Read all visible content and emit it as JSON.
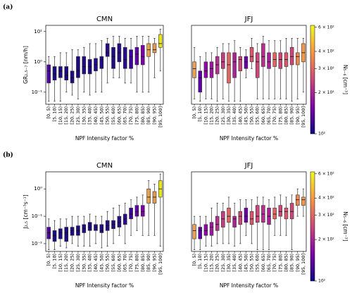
{
  "panel_labels": [
    "(a)",
    "(b)"
  ],
  "chart_data": [
    {
      "type": "box",
      "title": "CMN",
      "xlabel": "NPF Intensity factor %",
      "ylabel": "GR₂.₅₋₇ [nm/h]",
      "log_y": true,
      "ylim": [
        0.04,
        16
      ],
      "yticks": [
        {
          "value": 0.1,
          "label": "10⁻¹"
        },
        {
          "value": 1,
          "label": "10⁰"
        },
        {
          "value": 10,
          "label": "10¹"
        }
      ],
      "categories": [
        "[0, 5)",
        "[5, 10)",
        "[10, 15)",
        "[15, 20)",
        "[20, 25)",
        "[25, 30)",
        "[30, 35)",
        "[35, 40)",
        "[40, 45)",
        "[45, 50)",
        "[50, 55)",
        "[55, 60)",
        "[60, 65)",
        "[65, 70)",
        "[70, 75)",
        "[75, 80)",
        "[80, 85)",
        "[85, 90)",
        "[90, 95)",
        "[95, 100]"
      ],
      "min": [
        0.05,
        0.05,
        0.05,
        0.1,
        0.08,
        0.06,
        0.1,
        0.08,
        0.1,
        0.1,
        0.2,
        0.3,
        0.3,
        0.2,
        0.2,
        0.1,
        0.1,
        0.1,
        0.3,
        0.5
      ],
      "q1": [
        0.2,
        0.25,
        0.3,
        0.25,
        0.2,
        0.3,
        0.4,
        0.4,
        0.5,
        0.6,
        1.5,
        0.6,
        1,
        0.6,
        0.6,
        0.8,
        0.8,
        1.5,
        2,
        3
      ],
      "median": [
        0.5,
        0.4,
        0.5,
        0.35,
        0.3,
        0.5,
        0.7,
        0.7,
        0.8,
        1.2,
        2,
        1.5,
        2,
        1.2,
        1.5,
        1.8,
        1.5,
        2.5,
        2.5,
        4
      ],
      "q3": [
        0.8,
        0.7,
        0.7,
        0.7,
        0.5,
        1.5,
        1.5,
        1.2,
        1.3,
        1.5,
        4,
        3,
        4,
        3,
        2.5,
        3,
        3.5,
        4,
        4,
        8
      ],
      "max": [
        1.5,
        1.5,
        2,
        2,
        2.5,
        2.5,
        3,
        4,
        4,
        5,
        6,
        7,
        7,
        6,
        6,
        7,
        7,
        7,
        6,
        12
      ],
      "colors": [
        "#4a02a0",
        "#1c0a80",
        "#1f0c82",
        "#1a0a7e",
        "#200b84",
        "#1d0a80",
        "#220b85",
        "#1e0a82",
        "#230c86",
        "#200b84",
        "#250c87",
        "#1f0b82",
        "#270c88",
        "#2a0c8a",
        "#3b049a",
        "#5c01a6",
        "#7b02a8",
        "#e8a04a",
        "#e39a50",
        "#e5e419"
      ]
    },
    {
      "type": "box",
      "title": "JFJ",
      "xlabel": "NPF Intensity factor %",
      "log_y": true,
      "ylim": [
        0.04,
        16
      ],
      "categories": [
        "[0, 5)",
        "[5, 10)",
        "[10, 15)",
        "[15, 20)",
        "[20, 25)",
        "[25, 30)",
        "[30, 35)",
        "[35, 40)",
        "[40, 45)",
        "[45, 50)",
        "[50, 55)",
        "[55, 60)",
        "[60, 65)",
        "[65, 70)",
        "[70, 75)",
        "[75, 80)",
        "[80, 85)",
        "[85, 90)",
        "[90, 95)",
        "[95, 100]"
      ],
      "min": [
        0.06,
        0.05,
        0.06,
        0.06,
        0.05,
        0.06,
        0.05,
        0.05,
        0.05,
        0.3,
        0.6,
        0.06,
        0.06,
        0.06,
        0.06,
        0.06,
        0.06,
        0.05,
        0.06,
        0.1
      ],
      "q1": [
        0.3,
        0.1,
        0.3,
        0.3,
        0.4,
        0.6,
        0.2,
        0.3,
        0.5,
        0.6,
        1,
        0.3,
        0.7,
        0.6,
        0.7,
        0.6,
        0.7,
        0.8,
        0.8,
        1
      ],
      "median": [
        0.6,
        0.3,
        0.5,
        0.6,
        0.8,
        1,
        0.8,
        1,
        1.2,
        1,
        1.5,
        1,
        1.5,
        1,
        1.2,
        1.2,
        1.2,
        1.5,
        1.5,
        2
      ],
      "q3": [
        1,
        0.5,
        1,
        1,
        1.5,
        2,
        2,
        2,
        1.5,
        1.5,
        3,
        2,
        4,
        2,
        2,
        2,
        2,
        3,
        2,
        4
      ],
      "max": [
        3,
        1.5,
        2,
        2,
        3,
        4,
        4,
        5,
        3,
        2.5,
        6,
        4,
        7,
        5,
        5,
        5,
        6,
        6,
        6,
        6
      ],
      "colors": [
        "#e8a05a",
        "#5c01a6",
        "#8b0aa5",
        "#9c179e",
        "#b52f8c",
        "#c33d80",
        "#e16462",
        "#a82296",
        "#cc4778",
        "#6a00a8",
        "#d8576b",
        "#cc4778",
        "#b52f8c",
        "#a82296",
        "#e16462",
        "#cc4778",
        "#d8576b",
        "#cc4778",
        "#f2844b",
        "#f89540"
      ],
      "colorbar": {
        "label": "N₅₋₆ [cm⁻³]",
        "lim": [
          100,
          620
        ],
        "log": true,
        "ticks": [
          {
            "value": 100,
            "label": "10²"
          },
          {
            "value": 200,
            "label": "2 × 10²"
          },
          {
            "value": 300,
            "label": "3 × 10²"
          },
          {
            "value": 400,
            "label": "4 × 10²"
          },
          {
            "value": 600,
            "label": "6 × 10²"
          }
        ]
      }
    },
    {
      "type": "box",
      "title": "CMN",
      "xlabel": "NPF Intensity factor %",
      "ylabel": "J₂.₅ [cm⁻³s⁻¹]",
      "log_y": true,
      "ylim": [
        0.0052,
        4.2
      ],
      "yticks": [
        {
          "value": 0.01,
          "label": "10⁻²"
        },
        {
          "value": 0.1,
          "label": "10⁻¹"
        },
        {
          "value": 1,
          "label": "10⁰"
        }
      ],
      "categories": [
        "[0, 5)",
        "[5, 10)",
        "[10, 15)",
        "[15, 20)",
        "[20, 25)",
        "[25, 30)",
        "[30, 35)",
        "[35, 40)",
        "[40, 45)",
        "[45, 50)",
        "[50, 55)",
        "[55, 60)",
        "[60, 65)",
        "[65, 70)",
        "[70, 75)",
        "[75, 80)",
        "[80, 85)",
        "[85, 90)",
        "[90, 95)",
        "[95, 100]"
      ],
      "min": [
        0.006,
        0.006,
        0.008,
        0.007,
        0.01,
        0.008,
        0.008,
        0.008,
        0.01,
        0.007,
        0.008,
        0.01,
        0.02,
        0.01,
        0.02,
        0.03,
        0.02,
        0.02,
        0.02,
        0.008
      ],
      "q1": [
        0.015,
        0.012,
        0.015,
        0.012,
        0.02,
        0.02,
        0.025,
        0.03,
        0.03,
        0.025,
        0.03,
        0.035,
        0.04,
        0.05,
        0.08,
        0.1,
        0.1,
        0.3,
        0.3,
        0.5
      ],
      "median": [
        0.025,
        0.02,
        0.025,
        0.025,
        0.03,
        0.03,
        0.035,
        0.04,
        0.04,
        0.03,
        0.045,
        0.05,
        0.06,
        0.08,
        0.12,
        0.15,
        0.15,
        0.5,
        0.5,
        1
      ],
      "q3": [
        0.04,
        0.03,
        0.035,
        0.04,
        0.04,
        0.045,
        0.05,
        0.06,
        0.05,
        0.05,
        0.07,
        0.07,
        0.1,
        0.12,
        0.2,
        0.25,
        0.25,
        1,
        0.8,
        2
      ],
      "max": [
        0.08,
        0.07,
        0.08,
        0.08,
        0.1,
        0.1,
        0.1,
        0.12,
        0.1,
        0.1,
        0.15,
        0.2,
        0.25,
        0.3,
        0.4,
        0.5,
        0.6,
        2,
        1.5,
        3.5
      ],
      "colors": [
        "#4a02a0",
        "#1c0a80",
        "#1f0c82",
        "#1a0a7e",
        "#200b84",
        "#1d0a80",
        "#220b85",
        "#1e0a82",
        "#230c86",
        "#200b84",
        "#250c87",
        "#1f0b82",
        "#270c88",
        "#2a0c8a",
        "#3b049a",
        "#5c01a6",
        "#7b02a8",
        "#e8a04a",
        "#e39a50",
        "#e5e419"
      ]
    },
    {
      "type": "box",
      "title": "JFJ",
      "xlabel": "NPF Intensity factor %",
      "log_y": true,
      "ylim": [
        0.0052,
        4.2
      ],
      "categories": [
        "[0, 5)",
        "[5, 10)",
        "[10, 15)",
        "[15, 20)",
        "[20, 25)",
        "[25, 30)",
        "[30, 35)",
        "[35, 40)",
        "[40, 45)",
        "[45, 50)",
        "[50, 55)",
        "[55, 60)",
        "[60, 65)",
        "[65, 70)",
        "[70, 75)",
        "[75, 80)",
        "[80, 85)",
        "[85, 90)",
        "[90, 95)",
        "[95, 100]"
      ],
      "min": [
        0.006,
        0.006,
        0.008,
        0.008,
        0.01,
        0.01,
        0.01,
        0.008,
        0.01,
        0.02,
        0.01,
        0.006,
        0.006,
        0.006,
        0.02,
        0.02,
        0.02,
        0.006,
        0.1,
        0.1
      ],
      "q1": [
        0.015,
        0.015,
        0.02,
        0.02,
        0.03,
        0.04,
        0.06,
        0.04,
        0.05,
        0.06,
        0.05,
        0.06,
        0.06,
        0.05,
        0.08,
        0.1,
        0.08,
        0.08,
        0.25,
        0.25
      ],
      "median": [
        0.03,
        0.03,
        0.03,
        0.04,
        0.05,
        0.08,
        0.1,
        0.08,
        0.1,
        0.1,
        0.08,
        0.1,
        0.12,
        0.1,
        0.12,
        0.15,
        0.15,
        0.15,
        0.4,
        0.4
      ],
      "q3": [
        0.05,
        0.04,
        0.05,
        0.06,
        0.1,
        0.15,
        0.2,
        0.1,
        0.15,
        0.2,
        0.15,
        0.25,
        0.25,
        0.2,
        0.2,
        0.25,
        0.2,
        0.3,
        0.6,
        0.5
      ],
      "max": [
        0.1,
        0.1,
        0.1,
        0.2,
        0.3,
        0.3,
        0.5,
        0.3,
        0.4,
        0.4,
        0.4,
        0.5,
        0.5,
        0.4,
        0.5,
        0.6,
        0.5,
        0.6,
        1,
        1
      ],
      "colors": [
        "#e8a05a",
        "#5c01a6",
        "#8b0aa5",
        "#9c179e",
        "#b52f8c",
        "#c33d80",
        "#e16462",
        "#a82296",
        "#cc4778",
        "#6a00a8",
        "#d8576b",
        "#cc4778",
        "#b52f8c",
        "#a82296",
        "#e16462",
        "#cc4778",
        "#d8576b",
        "#cc4778",
        "#f2844b",
        "#f89540"
      ],
      "colorbar": {
        "label": "N₅₋₆ [cm⁻³]",
        "lim": [
          100,
          620
        ],
        "log": true,
        "ticks": [
          {
            "value": 100,
            "label": "10²"
          },
          {
            "value": 200,
            "label": "2 × 10²"
          },
          {
            "value": 300,
            "label": "3 × 10²"
          },
          {
            "value": 400,
            "label": "4 × 10²"
          },
          {
            "value": 600,
            "label": "6 × 10²"
          }
        ]
      }
    }
  ]
}
